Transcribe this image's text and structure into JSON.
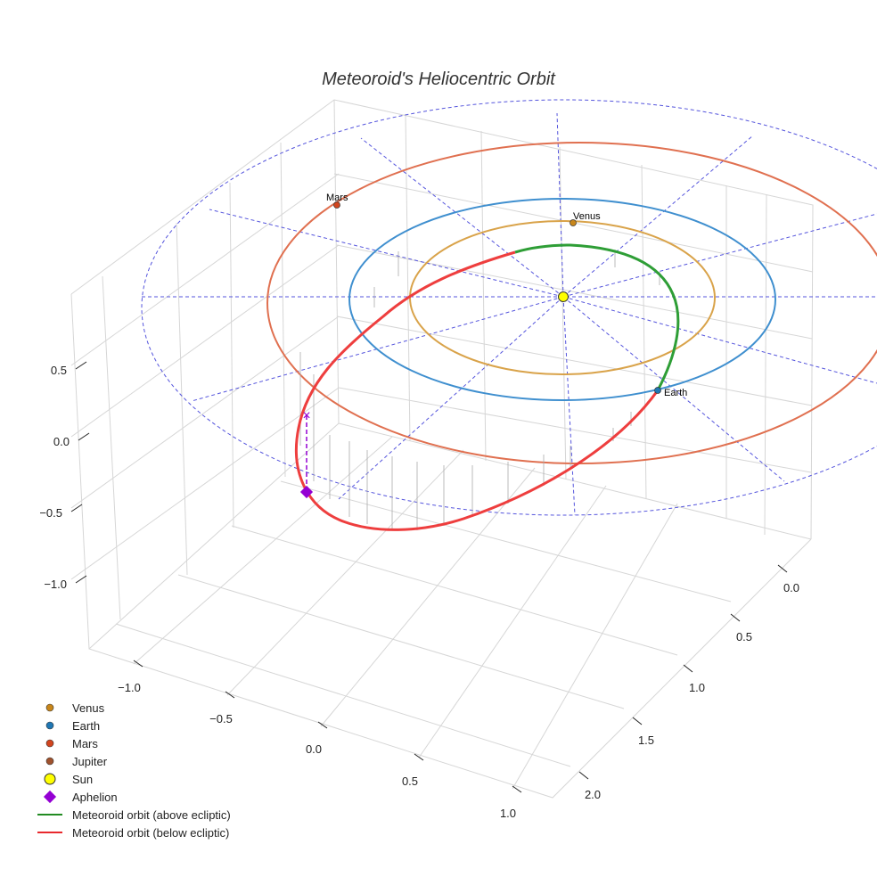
{
  "chart_data": {
    "type": "line",
    "projection": "3d",
    "title": "Meteoroid's Heliocentric Orbit",
    "xlabel": "",
    "ylabel": "",
    "zlabel": "",
    "x_ticks": [
      "−1.0",
      "−0.5",
      "0.0",
      "0.5",
      "1.0"
    ],
    "y_ticks": [
      "0.0",
      "0.5",
      "1.0",
      "1.5",
      "2.0"
    ],
    "z_ticks": [
      "0.5",
      "0.0",
      "−0.5",
      "−1.0"
    ],
    "planet_labels": [
      "Mars",
      "Venus",
      "Earth"
    ],
    "legend_placement": "lower-left",
    "legend": [
      {
        "label": "Venus",
        "kind": "dot",
        "color": "#c8861a"
      },
      {
        "label": "Earth",
        "kind": "dot",
        "color": "#1f77b4"
      },
      {
        "label": "Mars",
        "kind": "dot",
        "color": "#d2451e"
      },
      {
        "label": "Jupiter",
        "kind": "dot",
        "color": "#a0522d"
      },
      {
        "label": "Sun",
        "kind": "sun",
        "color": "#ffff00"
      },
      {
        "label": "Aphelion",
        "kind": "diamond",
        "color": "#9400d3"
      },
      {
        "label": "Meteoroid orbit (above ecliptic)",
        "kind": "line",
        "color": "#228b22"
      },
      {
        "label": "Meteoroid orbit (below ecliptic)",
        "kind": "line",
        "color": "#e8292d"
      }
    ],
    "orbit_colors": {
      "venus": "#d9a34a",
      "earth": "#3f8fcf",
      "mars": "#e07050",
      "reference": "#5555dd"
    }
  }
}
